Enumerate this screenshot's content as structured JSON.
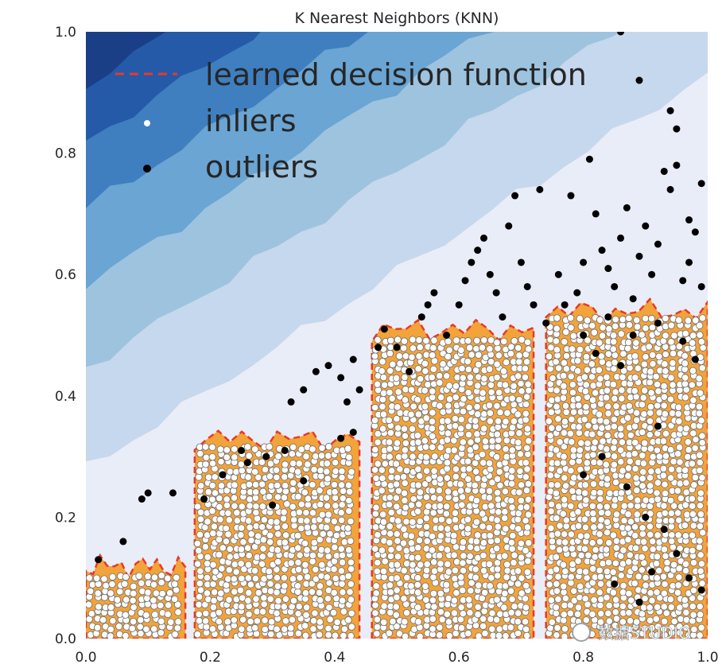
{
  "chart_data": {
    "type": "scatter",
    "title": "K Nearest Neighbors (KNN)",
    "xlabel": "",
    "ylabel": "",
    "xlim": [
      0.0,
      1.0
    ],
    "ylim": [
      0.0,
      1.0
    ],
    "x_ticks": [
      "0.0",
      "0.2",
      "0.4",
      "0.6",
      "0.8",
      "1.0"
    ],
    "y_ticks": [
      "0.0",
      "0.2",
      "0.4",
      "0.6",
      "0.8",
      "1.0"
    ],
    "grid": false,
    "legend": {
      "placement": "top-left",
      "entries": [
        {
          "label": "learned decision function",
          "marker": "dashed-line",
          "color": "#e8392a"
        },
        {
          "label": "inliers",
          "marker": "dot",
          "color": "#ffffff"
        },
        {
          "label": "outliers",
          "marker": "dot",
          "color": "#000000"
        }
      ]
    },
    "contour_colors": [
      "#e9edf8",
      "#c6d8ed",
      "#9dc3df",
      "#6aa5d3",
      "#3f7fc0",
      "#255aa8",
      "#1a3f87"
    ],
    "inlier_clusters": [
      {
        "x_range": [
          0.0,
          0.16
        ],
        "top": 0.13
      },
      {
        "x_range": [
          0.175,
          0.44
        ],
        "top": 0.34
      },
      {
        "x_range": [
          0.46,
          0.72
        ],
        "top": 0.52
      },
      {
        "x_range": [
          0.74,
          1.0
        ],
        "top": 0.55
      }
    ],
    "outliers": [
      [
        0.02,
        0.13
      ],
      [
        0.06,
        0.16
      ],
      [
        0.09,
        0.23
      ],
      [
        0.1,
        0.24
      ],
      [
        0.14,
        0.24
      ],
      [
        0.19,
        0.23
      ],
      [
        0.22,
        0.27
      ],
      [
        0.25,
        0.31
      ],
      [
        0.26,
        0.29
      ],
      [
        0.29,
        0.3
      ],
      [
        0.32,
        0.31
      ],
      [
        0.33,
        0.39
      ],
      [
        0.35,
        0.41
      ],
      [
        0.37,
        0.44
      ],
      [
        0.39,
        0.45
      ],
      [
        0.41,
        0.43
      ],
      [
        0.42,
        0.39
      ],
      [
        0.44,
        0.41
      ],
      [
        0.43,
        0.46
      ],
      [
        0.41,
        0.33
      ],
      [
        0.43,
        0.34
      ],
      [
        0.47,
        0.48
      ],
      [
        0.48,
        0.51
      ],
      [
        0.5,
        0.48
      ],
      [
        0.52,
        0.44
      ],
      [
        0.54,
        0.53
      ],
      [
        0.55,
        0.55
      ],
      [
        0.56,
        0.57
      ],
      [
        0.58,
        0.5
      ],
      [
        0.6,
        0.55
      ],
      [
        0.61,
        0.59
      ],
      [
        0.62,
        0.62
      ],
      [
        0.63,
        0.64
      ],
      [
        0.64,
        0.66
      ],
      [
        0.65,
        0.6
      ],
      [
        0.66,
        0.57
      ],
      [
        0.67,
        0.53
      ],
      [
        0.68,
        0.68
      ],
      [
        0.69,
        0.73
      ],
      [
        0.7,
        0.62
      ],
      [
        0.71,
        0.58
      ],
      [
        0.72,
        0.55
      ],
      [
        0.73,
        0.74
      ],
      [
        0.74,
        0.52
      ],
      [
        0.76,
        0.6
      ],
      [
        0.77,
        0.55
      ],
      [
        0.78,
        0.73
      ],
      [
        0.79,
        0.57
      ],
      [
        0.8,
        0.62
      ],
      [
        0.81,
        0.79
      ],
      [
        0.82,
        0.7
      ],
      [
        0.83,
        0.64
      ],
      [
        0.84,
        0.61
      ],
      [
        0.85,
        0.58
      ],
      [
        0.86,
        0.66
      ],
      [
        0.87,
        0.71
      ],
      [
        0.88,
        0.56
      ],
      [
        0.89,
        0.63
      ],
      [
        0.9,
        0.68
      ],
      [
        0.91,
        0.6
      ],
      [
        0.92,
        0.65
      ],
      [
        0.93,
        0.77
      ],
      [
        0.94,
        0.74
      ],
      [
        0.95,
        0.78
      ],
      [
        0.96,
        0.59
      ],
      [
        0.97,
        0.62
      ],
      [
        0.98,
        0.67
      ],
      [
        0.99,
        0.58
      ],
      [
        0.99,
        0.75
      ],
      [
        0.97,
        0.69
      ],
      [
        0.95,
        0.84
      ],
      [
        0.94,
        0.87
      ],
      [
        0.89,
        0.92
      ],
      [
        0.86,
        1.0
      ],
      [
        0.8,
        0.5
      ],
      [
        0.82,
        0.47
      ],
      [
        0.84,
        0.53
      ],
      [
        0.86,
        0.45
      ],
      [
        0.88,
        0.5
      ],
      [
        0.92,
        0.52
      ],
      [
        0.96,
        0.49
      ],
      [
        0.98,
        0.46
      ],
      [
        0.83,
        0.3
      ],
      [
        0.87,
        0.25
      ],
      [
        0.9,
        0.2
      ],
      [
        0.93,
        0.18
      ],
      [
        0.95,
        0.14
      ],
      [
        0.97,
        0.1
      ],
      [
        0.85,
        0.09
      ],
      [
        0.89,
        0.06
      ],
      [
        0.91,
        0.11
      ],
      [
        0.99,
        0.08
      ],
      [
        0.8,
        0.27
      ],
      [
        0.92,
        0.35
      ],
      [
        0.3,
        0.22
      ],
      [
        0.35,
        0.26
      ]
    ],
    "watermark": "数据STUDIO"
  }
}
